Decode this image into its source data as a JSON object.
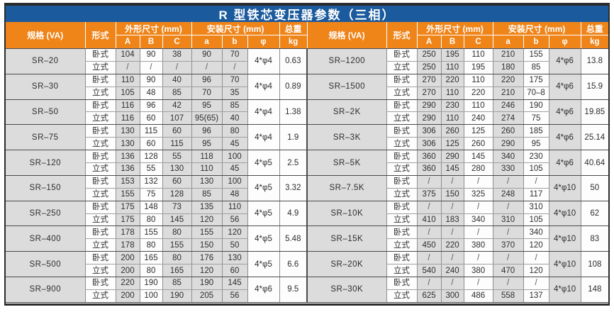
{
  "title": "R 型铁芯变压器参数（三相）",
  "colors": {
    "title_bg": "#1a5a9d",
    "header_bg": "#ef8419",
    "shaded_cell": "#dcdcdc"
  },
  "header": {
    "spec": "规格 (VA)",
    "form": "形式",
    "outline_group": "外形尺寸 (mm)",
    "install_group": "安装尺寸 (mm)",
    "weight_group": "总重",
    "outline_cols": [
      "A",
      "B",
      "C"
    ],
    "install_cols": [
      "a",
      "b",
      "φ"
    ],
    "weight_unit": "kg"
  },
  "form_labels": {
    "horizontal": "卧式",
    "vertical": "立式"
  },
  "left_groups": [
    {
      "spec": "SR–20",
      "h": [
        "104",
        "90",
        "38",
        "90",
        "70"
      ],
      "v": [
        "/",
        "/",
        "/",
        "/",
        "/"
      ],
      "phi": "4*φ4",
      "kg": "0.63"
    },
    {
      "spec": "SR–30",
      "h": [
        "110",
        "90",
        "40",
        "96",
        "70"
      ],
      "v": [
        "105",
        "48",
        "85",
        "70",
        "35"
      ],
      "phi": "4*φ4",
      "kg": "0.89"
    },
    {
      "spec": "SR–50",
      "h": [
        "116",
        "96",
        "42",
        "95",
        "85"
      ],
      "v": [
        "116",
        "60",
        "107",
        "95(65)",
        "40"
      ],
      "phi": "4*φ4",
      "kg": "1.38"
    },
    {
      "spec": "SR–75",
      "h": [
        "130",
        "115",
        "60",
        "96",
        "80"
      ],
      "v": [
        "130",
        "60",
        "115",
        "95",
        "45"
      ],
      "phi": "4*φ4",
      "kg": "1.9"
    },
    {
      "spec": "SR–120",
      "h": [
        "136",
        "128",
        "55",
        "118",
        "100"
      ],
      "v": [
        "136",
        "55",
        "130",
        "110",
        "45"
      ],
      "phi": "4*φ5",
      "kg": "2.5"
    },
    {
      "spec": "SR–150",
      "h": [
        "153",
        "132",
        "60",
        "130",
        "100"
      ],
      "v": [
        "155",
        "75",
        "128",
        "85",
        "48"
      ],
      "phi": "4*φ5",
      "kg": "3.32"
    },
    {
      "spec": "SR–250",
      "h": [
        "175",
        "148",
        "73",
        "135",
        "110"
      ],
      "v": [
        "175",
        "80",
        "145",
        "120",
        "56"
      ],
      "phi": "4*φ5",
      "kg": "4.9"
    },
    {
      "spec": "SR–400",
      "h": [
        "178",
        "155",
        "80",
        "155",
        "120"
      ],
      "v": [
        "178",
        "80",
        "155",
        "150",
        "50"
      ],
      "phi": "4*φ5",
      "kg": "5.48"
    },
    {
      "spec": "SR–500",
      "h": [
        "200",
        "165",
        "80",
        "176",
        "130"
      ],
      "v": [
        "200",
        "80",
        "165",
        "120",
        "60"
      ],
      "phi": "4*φ5",
      "kg": "6.6"
    },
    {
      "spec": "SR–900",
      "h": [
        "220",
        "190",
        "85",
        "190",
        "145"
      ],
      "v": [
        "200",
        "100",
        "190",
        "205",
        "56"
      ],
      "phi": "4*φ6",
      "kg": "9.5"
    }
  ],
  "right_groups": [
    {
      "spec": "SR–1200",
      "h": [
        "250",
        "195",
        "110",
        "210",
        "155"
      ],
      "v": [
        "250",
        "110",
        "195",
        "180",
        "85"
      ],
      "phi": "4*φ6",
      "kg": "13.8"
    },
    {
      "spec": "SR–1500",
      "h": [
        "270",
        "220",
        "110",
        "220",
        "175"
      ],
      "v": [
        "270",
        "110",
        "220",
        "210",
        "70–8"
      ],
      "phi": "4*φ6",
      "kg": "15.9"
    },
    {
      "spec": "SR–2K",
      "h": [
        "290",
        "230",
        "110",
        "246",
        "190"
      ],
      "v": [
        "290",
        "110",
        "240",
        "274",
        "75"
      ],
      "phi": "4*φ6",
      "kg": "19.85"
    },
    {
      "spec": "SR–3K",
      "h": [
        "306",
        "260",
        "125",
        "260",
        "185"
      ],
      "v": [
        "306",
        "125",
        "260",
        "290",
        "95"
      ],
      "phi": "4*φ6",
      "kg": "25.14"
    },
    {
      "spec": "SR–5K",
      "h": [
        "360",
        "290",
        "145",
        "340",
        "230"
      ],
      "v": [
        "360",
        "145",
        "280",
        "330",
        "105"
      ],
      "phi": "4*φ6",
      "kg": "40.64"
    },
    {
      "spec": "SR–7.5K",
      "h": [
        "/",
        "/",
        "/",
        "/",
        "/"
      ],
      "v": [
        "375",
        "150",
        "325",
        "248",
        "117"
      ],
      "phi": "4*φ10",
      "kg": "50"
    },
    {
      "spec": "SR–10K",
      "h": [
        "/",
        "/",
        "/",
        "/",
        "310"
      ],
      "v": [
        "410",
        "183",
        "340",
        "310",
        "105"
      ],
      "phi": "4*φ10",
      "kg": "62"
    },
    {
      "spec": "SR–15K",
      "h": [
        "/",
        "/",
        "/",
        "/",
        "340"
      ],
      "v": [
        "450",
        "220",
        "380",
        "370",
        "120"
      ],
      "phi": "4*φ10",
      "kg": "83"
    },
    {
      "spec": "SR–20K",
      "h": [
        "/",
        "/",
        "/",
        "/",
        "/"
      ],
      "v": [
        "540",
        "240",
        "380",
        "470",
        "120"
      ],
      "phi": "4*φ10",
      "kg": "108"
    },
    {
      "spec": "SR–30K",
      "h": [
        "/",
        "/",
        "/",
        "/",
        "/"
      ],
      "v": [
        "625",
        "300",
        "486",
        "558",
        "137"
      ],
      "phi": "4*φ10",
      "kg": "148"
    }
  ]
}
